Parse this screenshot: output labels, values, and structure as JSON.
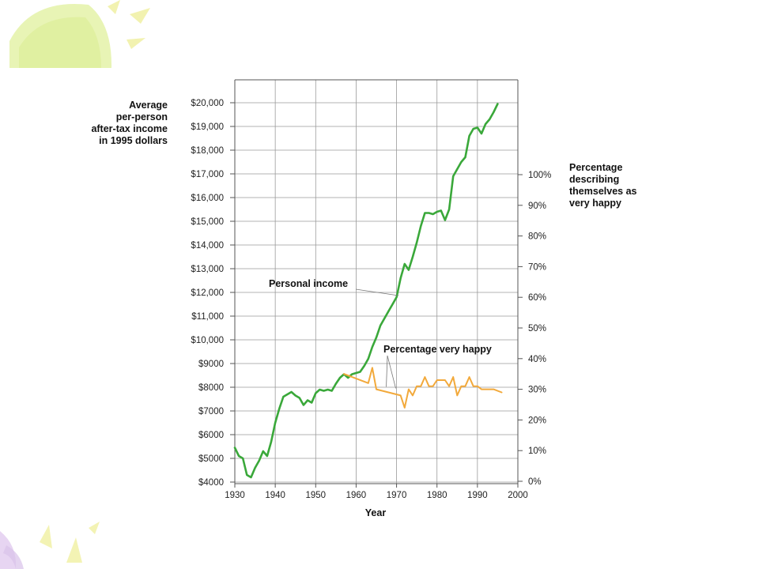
{
  "colors": {
    "income": "#3aa83a",
    "happy": "#f2a93b",
    "grid": "#9a9a9a",
    "leader": "#777777"
  },
  "left_axis_title_lines": [
    "Average",
    "per-person",
    "after-tax income",
    "in 1995 dollars"
  ],
  "right_axis_title_lines": [
    "Percentage",
    "describing",
    "themselves as",
    "very happy"
  ],
  "chart_data": {
    "type": "line",
    "xlabel": "Year",
    "xlim": [
      1930,
      2000
    ],
    "x_ticks": [
      1930,
      1940,
      1950,
      1960,
      1970,
      1980,
      1990,
      2000
    ],
    "y_left": {
      "lim": [
        4000,
        20000
      ],
      "ticks": [
        4000,
        5000,
        6000,
        7000,
        8000,
        9000,
        10000,
        11000,
        12000,
        13000,
        14000,
        15000,
        16000,
        17000,
        18000,
        19000,
        20000
      ],
      "tick_labels": [
        "$4000",
        "$5000",
        "$6000",
        "$7000",
        "$8000",
        "$9000",
        "$10,000",
        "$11,000",
        "$12,000",
        "$13,000",
        "$14,000",
        "$15,000",
        "$16,000",
        "$17,000",
        "$18,000",
        "$19,000",
        "$20,000"
      ]
    },
    "y_right": {
      "lim": [
        0,
        100
      ],
      "ticks": [
        0,
        10,
        20,
        30,
        40,
        50,
        60,
        70,
        80,
        90,
        100
      ],
      "tick_labels": [
        "0%",
        "10%",
        "20%",
        "30%",
        "40%",
        "50%",
        "60%",
        "70%",
        "80%",
        "90%",
        "100%"
      ]
    },
    "grid": true,
    "series": [
      {
        "name": "Personal income",
        "axis": "left",
        "x": [
          1930,
          1931,
          1932,
          1933,
          1934,
          1935,
          1936,
          1937,
          1938,
          1939,
          1940,
          1941,
          1942,
          1943,
          1944,
          1945,
          1946,
          1947,
          1948,
          1949,
          1950,
          1951,
          1952,
          1953,
          1954,
          1955,
          1956,
          1957,
          1958,
          1959,
          1960,
          1961,
          1962,
          1963,
          1964,
          1965,
          1966,
          1967,
          1968,
          1969,
          1970,
          1971,
          1972,
          1973,
          1974,
          1975,
          1976,
          1977,
          1978,
          1979,
          1980,
          1981,
          1982,
          1983,
          1984,
          1985,
          1986,
          1987,
          1988,
          1989,
          1990,
          1991,
          1992,
          1993,
          1994,
          1995
        ],
        "values": [
          5450,
          5100,
          5000,
          4300,
          4200,
          4600,
          4900,
          5300,
          5100,
          5700,
          6500,
          7100,
          7600,
          7700,
          7800,
          7650,
          7550,
          7250,
          7450,
          7350,
          7750,
          7900,
          7850,
          7900,
          7850,
          8150,
          8400,
          8550,
          8400,
          8550,
          8600,
          8650,
          8900,
          9200,
          9700,
          10100,
          10600,
          10900,
          11200,
          11500,
          11800,
          12600,
          13200,
          12950,
          13500,
          14100,
          14800,
          15350,
          15350,
          15300,
          15400,
          15450,
          15050,
          15500,
          16900,
          17200,
          17500,
          17700,
          18600,
          18900,
          18950,
          18700,
          19100,
          19300,
          19600,
          19950
        ]
      },
      {
        "name": "Percentage very happy",
        "axis": "right",
        "x": [
          1957,
          1963,
          1964,
          1965,
          1971,
          1972,
          1973,
          1974,
          1975,
          1976,
          1977,
          1978,
          1979,
          1980,
          1981,
          1982,
          1983,
          1984,
          1985,
          1986,
          1987,
          1988,
          1989,
          1990,
          1991,
          1993,
          1994,
          1996
        ],
        "values": [
          35,
          32,
          37,
          30,
          28,
          24,
          30,
          28,
          31,
          31,
          34,
          31,
          31,
          33,
          33,
          33,
          31,
          34,
          28,
          31,
          31,
          34,
          31,
          31,
          30,
          30,
          30,
          29
        ]
      }
    ],
    "annotations": [
      {
        "text": "Personal income",
        "target_year": 1970.5,
        "target_value": 11800
      },
      {
        "text": "Percentage very happy",
        "target_year": 1969.8,
        "target_value": 30.3
      }
    ]
  }
}
